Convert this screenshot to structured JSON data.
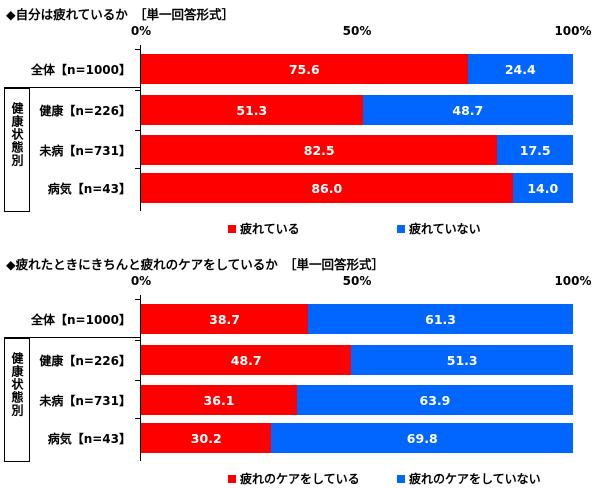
{
  "colors": {
    "red": "#ff0000",
    "blue": "#0066ff"
  },
  "chart_data": [
    {
      "type": "bar",
      "stacked": true,
      "orientation": "horizontal",
      "title": "◆自分は疲れているか　［単一回答形式］",
      "xticks": [
        "0%",
        "50%",
        "100%"
      ],
      "xlim": [
        0,
        100
      ],
      "group_label": "健康状態別",
      "categories": [
        "全体【n=1000】",
        "健康【n=226】",
        "未病【n=731】",
        "病気【n=43】"
      ],
      "series": [
        {
          "name": "疲れている",
          "values": [
            75.6,
            51.3,
            82.5,
            86.0
          ],
          "labels": [
            "75.6",
            "51.3",
            "82.5",
            "86.0"
          ]
        },
        {
          "name": "疲れていない",
          "values": [
            24.4,
            48.7,
            17.5,
            14.0
          ],
          "labels": [
            "24.4",
            "48.7",
            "17.5",
            "14.0"
          ]
        }
      ]
    },
    {
      "type": "bar",
      "stacked": true,
      "orientation": "horizontal",
      "title": "◆疲れたときにきちんと疲れのケアをしているか　［単一回答形式］",
      "xticks": [
        "0%",
        "50%",
        "100%"
      ],
      "xlim": [
        0,
        100
      ],
      "group_label": "健康状態別",
      "categories": [
        "全体【n=1000】",
        "健康【n=226】",
        "未病【n=731】",
        "病気【n=43】"
      ],
      "series": [
        {
          "name": "疲れのケアをしている",
          "values": [
            38.7,
            48.7,
            36.1,
            30.2
          ],
          "labels": [
            "38.7",
            "48.7",
            "36.1",
            "30.2"
          ]
        },
        {
          "name": "疲れのケアをしていない",
          "values": [
            61.3,
            51.3,
            63.9,
            69.8
          ],
          "labels": [
            "61.3",
            "51.3",
            "63.9",
            "69.8"
          ]
        }
      ]
    }
  ]
}
